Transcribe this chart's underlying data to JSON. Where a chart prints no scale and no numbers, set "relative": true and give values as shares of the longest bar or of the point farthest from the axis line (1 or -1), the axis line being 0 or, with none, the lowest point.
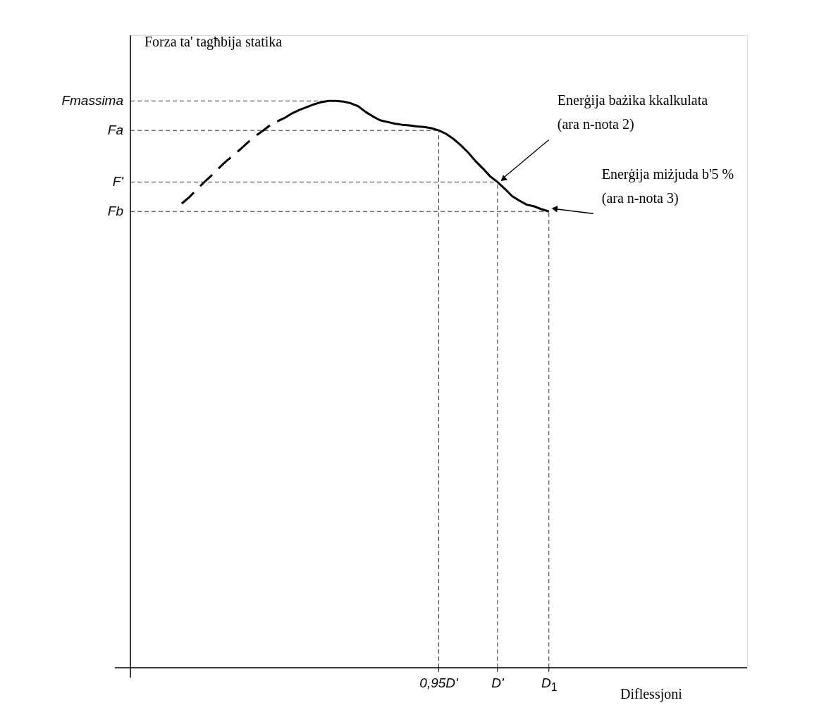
{
  "chart_data": {
    "type": "line",
    "relative": true,
    "grid": "x",
    "ylabel": "Forza ta' tagħbija statika",
    "xlabel": "Diflessjoni",
    "categories": [
      null,
      null,
      null,
      null,
      null,
      null,
      null,
      null,
      null,
      null,
      null,
      null,
      null,
      null,
      null,
      null,
      null,
      null,
      null,
      null,
      null,
      null,
      null,
      null,
      null,
      null,
      null,
      null,
      null,
      null,
      null,
      null,
      null,
      null,
      null,
      null,
      null,
      null,
      null,
      null,
      null,
      null,
      "0,95D'",
      null,
      null,
      null,
      null,
      null,
      null,
      null,
      "D'",
      null,
      null,
      null,
      null,
      null,
      null,
      "D$_{1}$",
      null,
      null,
      null,
      null,
      null,
      null,
      null,
      null,
      null,
      null,
      null,
      null,
      null,
      null,
      null,
      null,
      null,
      null,
      null,
      null,
      null,
      null,
      null,
      null,
      null,
      null,
      null
    ],
    "series": [
      {
        "color": "#000000",
        "line_style": "dashed",
        "values": [
          null,
          null,
          null,
          null,
          null,
          null,
          null,
          0.819,
          0.83,
          0.843,
          0.856,
          0.868,
          0.881,
          0.893,
          0.904,
          0.915,
          0.927,
          0.938,
          0.947,
          0.957,
          null,
          null,
          null,
          null,
          null,
          null,
          null,
          null,
          null,
          null,
          null,
          null,
          null,
          null,
          null,
          null,
          null,
          null,
          null,
          null,
          null,
          null,
          null,
          null,
          null,
          null,
          null,
          null,
          null,
          null,
          null,
          null,
          null,
          null,
          null,
          null,
          null,
          null,
          null,
          null,
          null,
          null,
          null,
          null,
          null,
          null,
          null,
          null,
          null,
          null,
          null,
          null,
          null,
          null,
          null,
          null,
          null,
          null,
          null,
          null,
          null,
          null,
          null,
          null,
          null
        ]
      },
      {
        "color": "#000000",
        "line_style": "solid",
        "values": [
          null,
          null,
          null,
          null,
          null,
          null,
          null,
          null,
          null,
          null,
          null,
          null,
          null,
          null,
          null,
          null,
          null,
          null,
          null,
          null,
          0.964,
          0.97,
          0.978,
          0.984,
          0.989,
          0.994,
          0.998,
          1.0,
          1.0,
          0.999,
          0.996,
          0.991,
          0.981,
          0.973,
          0.966,
          0.963,
          0.96,
          0.958,
          0.957,
          0.955,
          0.954,
          0.952,
          0.948,
          0.942,
          0.933,
          0.922,
          0.909,
          0.894,
          0.881,
          0.867,
          0.857,
          0.845,
          0.832,
          0.824,
          0.817,
          0.814,
          0.809,
          0.805,
          null,
          null,
          null,
          null,
          null,
          null,
          null,
          null,
          null,
          null,
          null,
          null,
          null,
          null,
          null,
          null,
          null,
          null,
          null,
          null,
          null,
          null,
          null,
          null,
          null,
          null,
          null
        ]
      }
    ],
    "ref_lines": [
      {
        "axis": "y",
        "value": 1.0,
        "label": "Fmassima",
        "line_style": "dashed"
      },
      {
        "axis": "y",
        "value": 0.948,
        "label": "Fa",
        "line_style": "dashed"
      },
      {
        "axis": "y",
        "value": 0.857,
        "label": "F'",
        "line_style": "dashed"
      },
      {
        "axis": "y",
        "value": 0.805,
        "label": "Fb",
        "line_style": "dashed"
      }
    ],
    "annotations": [
      {
        "text": "Enerġija bażika kkalkulata\n(ara n-nota 2)",
        "x": "D'",
        "y": 0.857
      },
      {
        "text": "Enerġija miżjuda b'5 %\n(ara n-nota 3)",
        "x": "D$_{1}$",
        "y": 0.805
      }
    ]
  }
}
